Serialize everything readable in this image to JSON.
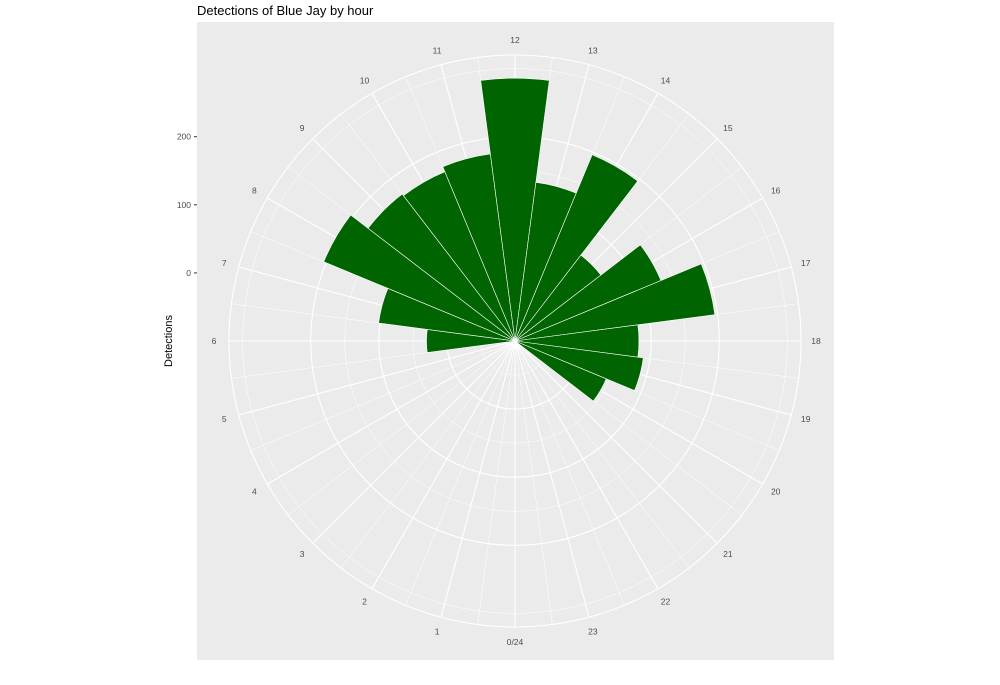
{
  "chart_data": {
    "type": "bar",
    "coord": "polar",
    "title": "Detections of Blue Jay by hour",
    "xlabel": "",
    "ylabel": "Detections",
    "categories": [
      "0/24",
      "1",
      "2",
      "3",
      "4",
      "5",
      "6",
      "7",
      "8",
      "9",
      "10",
      "11",
      "12",
      "13",
      "14",
      "15",
      "16",
      "17",
      "18",
      "19",
      "20",
      "21",
      "22",
      "23"
    ],
    "values": [
      0,
      0,
      0,
      0,
      0,
      0,
      30,
      102,
      204,
      172,
      169,
      177,
      286,
      135,
      196,
      59,
      132,
      196,
      82,
      90,
      45,
      0,
      0,
      0
    ],
    "yticks": [
      0,
      100,
      200
    ],
    "ytick_labels": [
      "0",
      "100",
      "200"
    ],
    "ylim": [
      -100,
      320
    ],
    "grid": true,
    "bar_color": "#006400",
    "panel_background": "#ebebeb",
    "grid_color": "#ffffff"
  }
}
